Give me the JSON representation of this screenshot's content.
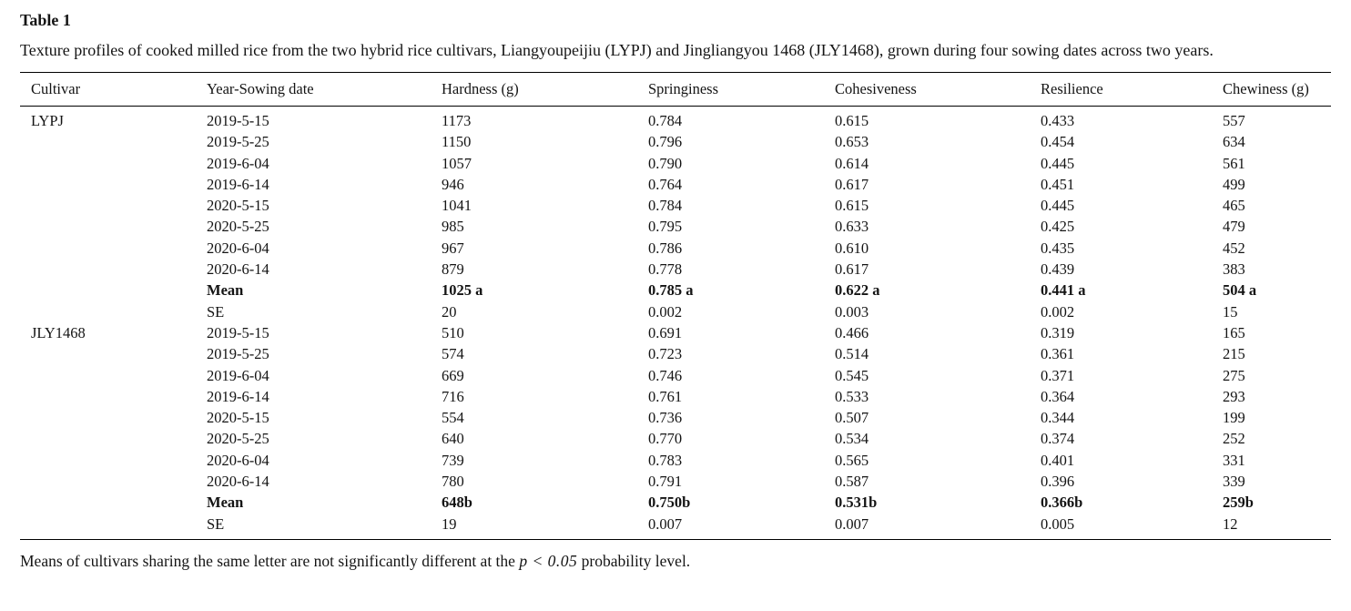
{
  "table": {
    "label": "Table 1",
    "caption": "Texture profiles of cooked milled rice from the two hybrid rice cultivars, Liangyoupeijiu (LYPJ) and Jingliangyou 1468 (JLY1468), grown during four sowing dates across two years.",
    "columns": [
      "Cultivar",
      "Year-Sowing date",
      "Hardness (g)",
      "Springiness",
      "Cohesiveness",
      "Resilience",
      "Chewiness (g)"
    ],
    "rows": [
      {
        "bold": false,
        "cells": [
          "LYPJ",
          "2019-5-15",
          "1173",
          "0.784",
          "0.615",
          "0.433",
          "557"
        ]
      },
      {
        "bold": false,
        "cells": [
          "",
          "2019-5-25",
          "1150",
          "0.796",
          "0.653",
          "0.454",
          "634"
        ]
      },
      {
        "bold": false,
        "cells": [
          "",
          "2019-6-04",
          "1057",
          "0.790",
          "0.614",
          "0.445",
          "561"
        ]
      },
      {
        "bold": false,
        "cells": [
          "",
          "2019-6-14",
          "946",
          "0.764",
          "0.617",
          "0.451",
          "499"
        ]
      },
      {
        "bold": false,
        "cells": [
          "",
          "2020-5-15",
          "1041",
          "0.784",
          "0.615",
          "0.445",
          "465"
        ]
      },
      {
        "bold": false,
        "cells": [
          "",
          "2020-5-25",
          "985",
          "0.795",
          "0.633",
          "0.425",
          "479"
        ]
      },
      {
        "bold": false,
        "cells": [
          "",
          "2020-6-04",
          "967",
          "0.786",
          "0.610",
          "0.435",
          "452"
        ]
      },
      {
        "bold": false,
        "cells": [
          "",
          "2020-6-14",
          "879",
          "0.778",
          "0.617",
          "0.439",
          "383"
        ]
      },
      {
        "bold": true,
        "cells": [
          "",
          "Mean",
          "1025 a",
          "0.785 a",
          "0.622 a",
          "0.441 a",
          "504 a"
        ]
      },
      {
        "bold": false,
        "cells": [
          "",
          "SE",
          "20",
          "0.002",
          "0.003",
          "0.002",
          "15"
        ]
      },
      {
        "bold": false,
        "cells": [
          "JLY1468",
          "2019-5-15",
          "510",
          "0.691",
          "0.466",
          "0.319",
          "165"
        ]
      },
      {
        "bold": false,
        "cells": [
          "",
          "2019-5-25",
          "574",
          "0.723",
          "0.514",
          "0.361",
          "215"
        ]
      },
      {
        "bold": false,
        "cells": [
          "",
          "2019-6-04",
          "669",
          "0.746",
          "0.545",
          "0.371",
          "275"
        ]
      },
      {
        "bold": false,
        "cells": [
          "",
          "2019-6-14",
          "716",
          "0.761",
          "0.533",
          "0.364",
          "293"
        ]
      },
      {
        "bold": false,
        "cells": [
          "",
          "2020-5-15",
          "554",
          "0.736",
          "0.507",
          "0.344",
          "199"
        ]
      },
      {
        "bold": false,
        "cells": [
          "",
          "2020-5-25",
          "640",
          "0.770",
          "0.534",
          "0.374",
          "252"
        ]
      },
      {
        "bold": false,
        "cells": [
          "",
          "2020-6-04",
          "739",
          "0.783",
          "0.565",
          "0.401",
          "331"
        ]
      },
      {
        "bold": false,
        "cells": [
          "",
          "2020-6-14",
          "780",
          "0.791",
          "0.587",
          "0.396",
          "339"
        ]
      },
      {
        "bold": true,
        "cells": [
          "",
          "Mean",
          "648b",
          "0.750b",
          "0.531b",
          "0.366b",
          "259b"
        ]
      },
      {
        "bold": false,
        "cells": [
          "",
          "SE",
          "19",
          "0.007",
          "0.007",
          "0.005",
          "12"
        ]
      }
    ],
    "footnote": {
      "prefix": "Means of cultivars sharing the same letter are not significantly different at the ",
      "emphasis": "p < 0.05",
      "suffix": " probability level."
    }
  }
}
